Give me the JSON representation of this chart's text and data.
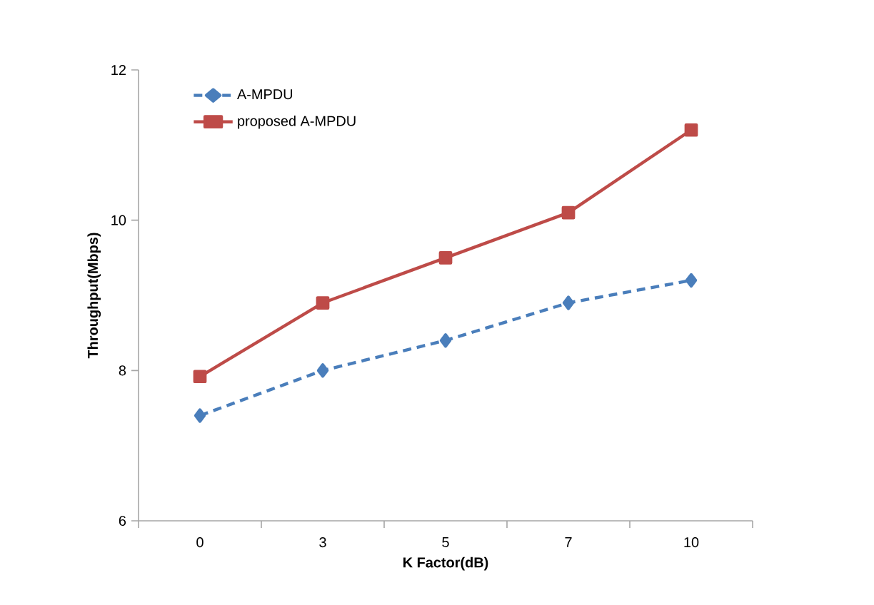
{
  "chart_data": {
    "type": "line",
    "xlabel": "K Factor(dB)",
    "ylabel": "Throughput(Mbps)",
    "categories": [
      "0",
      "3",
      "5",
      "7",
      "10"
    ],
    "series": [
      {
        "name": "A-MPDU",
        "color": "#4a7ebb",
        "marker": "diamond",
        "line_style": "dashed",
        "values": [
          7.4,
          8.0,
          8.4,
          8.9,
          9.2
        ]
      },
      {
        "name": "proposed A-MPDU",
        "color": "#be4b48",
        "marker": "square",
        "line_style": "solid",
        "values": [
          7.92,
          8.9,
          9.5,
          10.1,
          11.2
        ]
      }
    ],
    "ylim": [
      6,
      12
    ],
    "yticks": [
      6,
      8,
      10,
      12
    ],
    "grid": false,
    "legend": "top left"
  }
}
